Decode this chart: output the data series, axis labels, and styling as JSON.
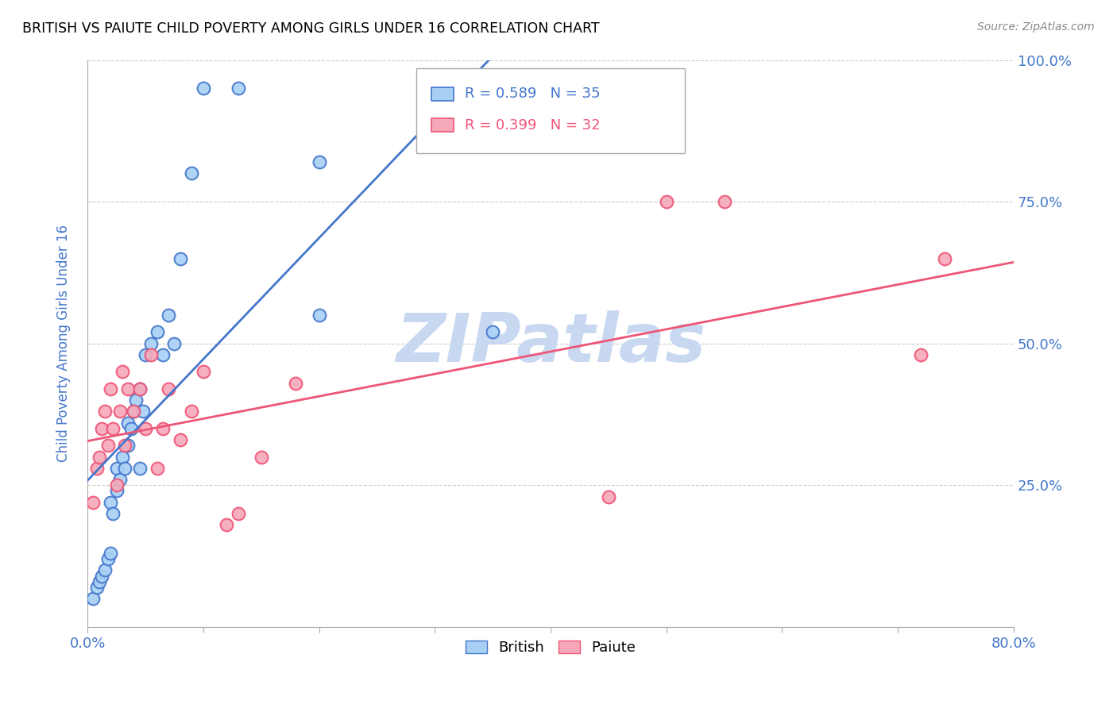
{
  "title": "BRITISH VS PAIUTE CHILD POVERTY AMONG GIRLS UNDER 16 CORRELATION CHART",
  "source": "Source: ZipAtlas.com",
  "ylabel": "Child Poverty Among Girls Under 16",
  "xlim": [
    0.0,
    0.8
  ],
  "ylim": [
    0.0,
    1.0
  ],
  "british_color": "#a8d0f5",
  "paiute_color": "#f5a8b8",
  "british_line_color": "#4477cc",
  "paiute_line_color": "#ee5577",
  "legend_r_british": "R = 0.589",
  "legend_n_british": "N = 35",
  "legend_r_paiute": "R = 0.399",
  "legend_n_paiute": "N = 32",
  "watermark": "ZIPatlas",
  "watermark_color": "#c8d8f0",
  "british_x": [
    0.005,
    0.008,
    0.01,
    0.012,
    0.015,
    0.018,
    0.02,
    0.02,
    0.022,
    0.025,
    0.025,
    0.028,
    0.03,
    0.032,
    0.035,
    0.035,
    0.038,
    0.04,
    0.042,
    0.045,
    0.045,
    0.048,
    0.05,
    0.055,
    0.06,
    0.065,
    0.07,
    0.075,
    0.08,
    0.09,
    0.1,
    0.13,
    0.2,
    0.2,
    0.35
  ],
  "british_y": [
    0.05,
    0.07,
    0.08,
    0.09,
    0.1,
    0.12,
    0.13,
    0.22,
    0.2,
    0.24,
    0.28,
    0.26,
    0.3,
    0.28,
    0.32,
    0.36,
    0.35,
    0.38,
    0.4,
    0.42,
    0.28,
    0.38,
    0.48,
    0.5,
    0.52,
    0.48,
    0.55,
    0.5,
    0.65,
    0.8,
    0.95,
    0.95,
    0.82,
    0.55,
    0.52
  ],
  "paiute_x": [
    0.005,
    0.008,
    0.01,
    0.012,
    0.015,
    0.018,
    0.02,
    0.022,
    0.025,
    0.028,
    0.03,
    0.032,
    0.035,
    0.04,
    0.045,
    0.05,
    0.055,
    0.06,
    0.065,
    0.07,
    0.08,
    0.09,
    0.1,
    0.12,
    0.13,
    0.15,
    0.18,
    0.45,
    0.5,
    0.55,
    0.72,
    0.74
  ],
  "paiute_y": [
    0.22,
    0.28,
    0.3,
    0.35,
    0.38,
    0.32,
    0.42,
    0.35,
    0.25,
    0.38,
    0.45,
    0.32,
    0.42,
    0.38,
    0.42,
    0.35,
    0.48,
    0.28,
    0.35,
    0.42,
    0.33,
    0.38,
    0.45,
    0.18,
    0.2,
    0.3,
    0.43,
    0.23,
    0.75,
    0.75,
    0.48,
    0.65
  ]
}
